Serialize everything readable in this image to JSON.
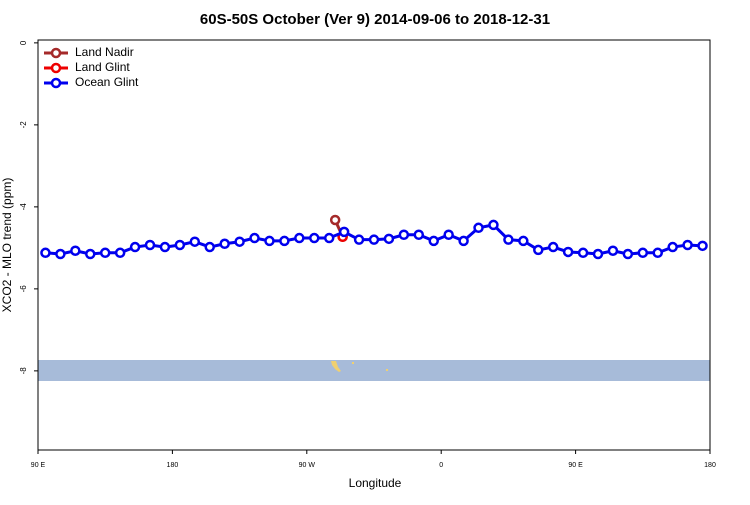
{
  "chart_data": {
    "type": "line",
    "title": "60S-50S October (Ver 9)   2014-09-06 to 2018-12-31",
    "x_label": "Longitude",
    "y_label": "XCO2 - MLO trend (ppm)",
    "xlim": [
      90,
      540
    ],
    "ylim": [
      -9.93,
      0.07
    ],
    "xticks": [
      {
        "value": 90,
        "label": "90 E"
      },
      {
        "value": 180,
        "label": "180"
      },
      {
        "value": 270,
        "label": "90 W"
      },
      {
        "value": 360,
        "label": "0"
      },
      {
        "value": 450,
        "label": "90 E"
      },
      {
        "value": 540,
        "label": "180"
      }
    ],
    "yticks": [
      0,
      -2,
      -4,
      -6,
      -8
    ],
    "legend": "top-left",
    "series": [
      {
        "name": "Land Nadir",
        "color": "#a52a2a",
        "x": [
          289,
          294
        ],
        "values": [
          -4.32,
          -4.73
        ]
      },
      {
        "name": "Land Glint",
        "color": "#ee0000",
        "x": [
          294
        ],
        "values": [
          -4.73
        ]
      },
      {
        "name": "Ocean Glint",
        "color": "#0000ee",
        "x": [
          95,
          105,
          115,
          125,
          135,
          145,
          155,
          165,
          175,
          185,
          195,
          205,
          215,
          225,
          235,
          245,
          255,
          265,
          275,
          285,
          295,
          305,
          315,
          325,
          335,
          345,
          355,
          365,
          375,
          385,
          395,
          405,
          415,
          425,
          435,
          445,
          455,
          465,
          475,
          485,
          495,
          505,
          515,
          525,
          535
        ],
        "values": [
          -5.12,
          -5.15,
          -5.07,
          -5.15,
          -5.12,
          -5.12,
          -4.98,
          -4.93,
          -4.98,
          -4.93,
          -4.85,
          -4.98,
          -4.9,
          -4.85,
          -4.76,
          -4.83,
          -4.83,
          -4.76,
          -4.76,
          -4.76,
          -4.61,
          -4.8,
          -4.8,
          -4.78,
          -4.68,
          -4.68,
          -4.83,
          -4.68,
          -4.83,
          -4.51,
          -4.44,
          -4.8,
          -4.83,
          -5.05,
          -4.98,
          -5.1,
          -5.12,
          -5.15,
          -5.07,
          -5.15,
          -5.12,
          -5.12,
          -4.98,
          -4.93,
          -4.95
        ]
      }
    ]
  }
}
